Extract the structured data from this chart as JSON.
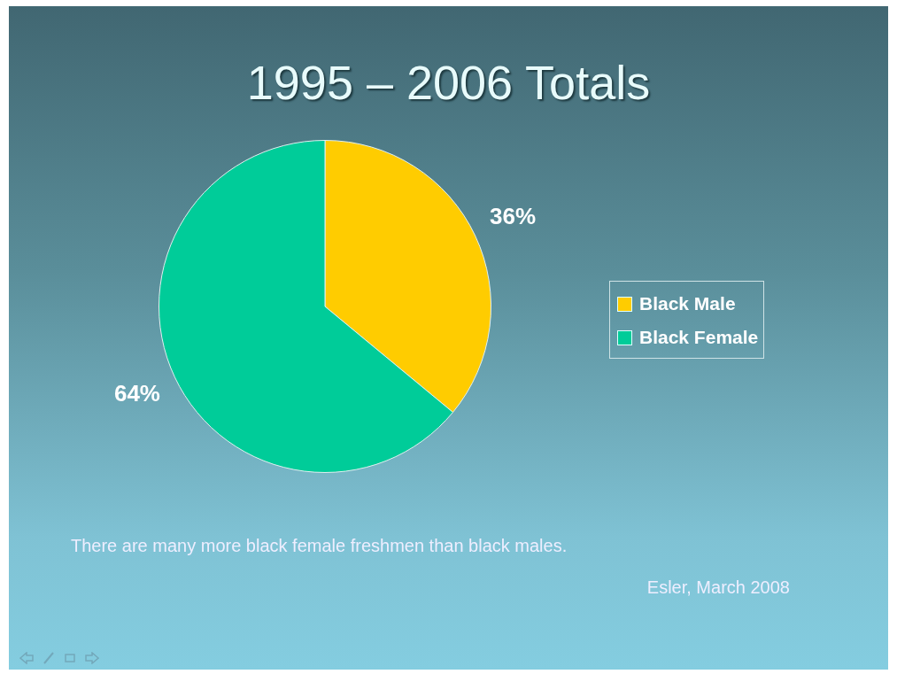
{
  "chart_data": {
    "type": "pie",
    "title": "1995 – 2006 Totals",
    "categories": [
      "Black Male",
      "Black Female"
    ],
    "values": [
      36,
      64
    ],
    "colors": [
      "#ffcc00",
      "#00cc99"
    ],
    "value_labels": [
      "36%",
      "64%"
    ],
    "legend": "right",
    "annotations": [
      "There are many more black female freshmen than black males.",
      "Esler, March 2008"
    ]
  }
}
